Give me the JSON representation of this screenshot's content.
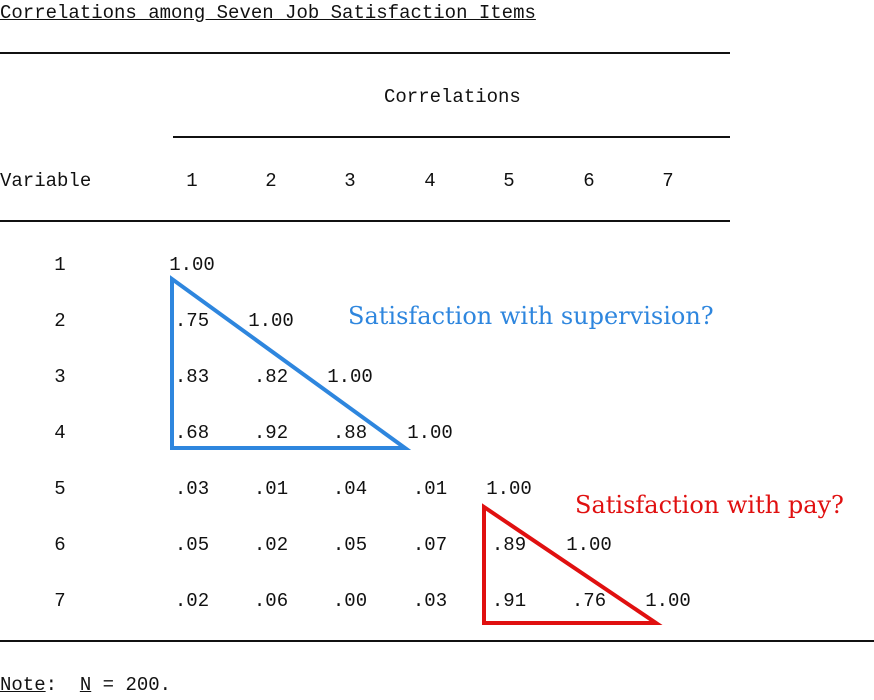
{
  "table": {
    "title": "Correlations among Seven Job Satisfaction Items",
    "spanner": "Correlations",
    "stub_header": "Variable",
    "column_labels": [
      "1",
      "2",
      "3",
      "4",
      "5",
      "6",
      "7"
    ],
    "row_labels": [
      "1",
      "2",
      "3",
      "4",
      "5",
      "6",
      "7"
    ],
    "rows": [
      [
        "1.00"
      ],
      [
        ".75",
        "1.00"
      ],
      [
        ".83",
        ".82",
        "1.00"
      ],
      [
        ".68",
        ".92",
        ".88",
        "1.00"
      ],
      [
        ".03",
        ".01",
        ".04",
        ".01",
        "1.00"
      ],
      [
        ".05",
        ".02",
        ".05",
        ".07",
        ".89",
        "1.00"
      ],
      [
        ".02",
        ".06",
        ".00",
        ".03",
        ".91",
        ".76",
        "1.00"
      ]
    ]
  },
  "annotations": {
    "supervision": "Satisfaction with supervision?",
    "pay": "Satisfaction with pay?",
    "blue_color": "#2e86de",
    "red_color": "#e01010"
  },
  "note": {
    "label": "Note",
    "colon": ":",
    "n_symbol": "N",
    "n_value": " = 200."
  }
}
